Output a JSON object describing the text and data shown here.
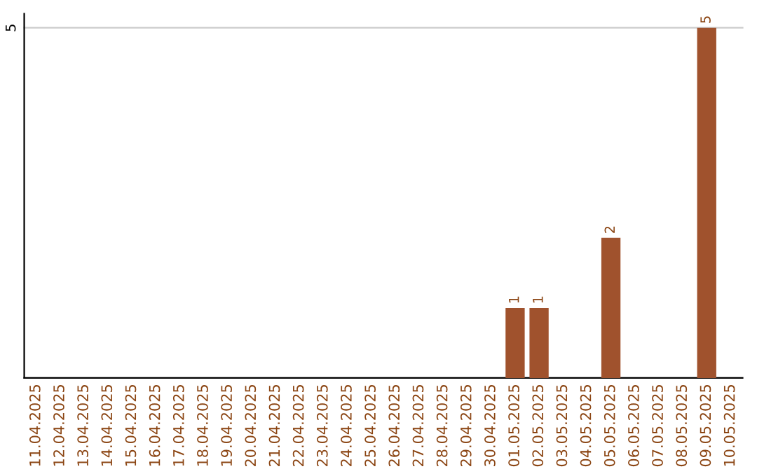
{
  "chart_data": {
    "type": "bar",
    "categories": [
      "11.04.2025",
      "12.04.2025",
      "13.04.2025",
      "14.04.2025",
      "15.04.2025",
      "16.04.2025",
      "17.04.2025",
      "18.04.2025",
      "19.04.2025",
      "20.04.2025",
      "21.04.2025",
      "22.04.2025",
      "23.04.2025",
      "24.04.2025",
      "25.04.2025",
      "26.04.2025",
      "27.04.2025",
      "28.04.2025",
      "29.04.2025",
      "30.04.2025",
      "01.05.2025",
      "02.05.2025",
      "03.05.2025",
      "04.05.2025",
      "05.05.2025",
      "06.05.2025",
      "07.05.2025",
      "08.05.2025",
      "09.05.2025",
      "10.05.2025"
    ],
    "values": [
      null,
      null,
      null,
      null,
      null,
      null,
      null,
      null,
      null,
      null,
      null,
      null,
      null,
      null,
      null,
      null,
      null,
      null,
      null,
      null,
      1,
      1,
      null,
      null,
      2,
      null,
      null,
      null,
      5,
      null
    ],
    "value_labels": [
      null,
      null,
      null,
      null,
      null,
      null,
      null,
      null,
      null,
      null,
      null,
      null,
      null,
      null,
      null,
      null,
      null,
      null,
      null,
      null,
      "1",
      "1",
      null,
      null,
      "2",
      null,
      null,
      null,
      "5",
      null
    ],
    "color": "#a0522d",
    "ylim": [
      0,
      5.2
    ],
    "yticks": [
      5
    ],
    "grid": "y"
  }
}
